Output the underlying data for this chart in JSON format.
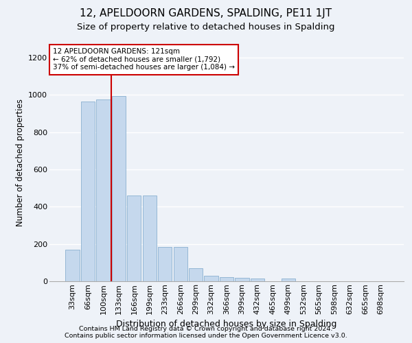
{
  "title": "12, APELDOORN GARDENS, SPALDING, PE11 1JT",
  "subtitle": "Size of property relative to detached houses in Spalding",
  "xlabel": "Distribution of detached houses by size in Spalding",
  "ylabel": "Number of detached properties",
  "footnote1": "Contains HM Land Registry data © Crown copyright and database right 2024.",
  "footnote2": "Contains public sector information licensed under the Open Government Licence v3.0.",
  "categories": [
    "33sqm",
    "66sqm",
    "100sqm",
    "133sqm",
    "166sqm",
    "199sqm",
    "233sqm",
    "266sqm",
    "299sqm",
    "332sqm",
    "366sqm",
    "399sqm",
    "432sqm",
    "465sqm",
    "499sqm",
    "532sqm",
    "565sqm",
    "598sqm",
    "632sqm",
    "665sqm",
    "698sqm"
  ],
  "values": [
    170,
    965,
    975,
    995,
    460,
    460,
    185,
    185,
    70,
    30,
    22,
    20,
    13,
    0,
    13,
    0,
    0,
    0,
    0,
    0,
    0
  ],
  "bar_color": "#c5d8ed",
  "bar_edge_color": "#8ab0d0",
  "vline_color": "#cc0000",
  "vline_index": 2.5,
  "annotation_text": "12 APELDOORN GARDENS: 121sqm\n← 62% of detached houses are smaller (1,792)\n37% of semi-detached houses are larger (1,084) →",
  "annotation_box_facecolor": "white",
  "annotation_box_edgecolor": "#cc0000",
  "ylim": [
    0,
    1270
  ],
  "yticks": [
    0,
    200,
    400,
    600,
    800,
    1000,
    1200
  ],
  "bg_color": "#eef2f8",
  "grid_color": "#ffffff",
  "title_fontsize": 11,
  "subtitle_fontsize": 9.5,
  "xlabel_fontsize": 9,
  "ylabel_fontsize": 8.5,
  "tick_fontsize": 8,
  "annotation_fontsize": 7.5,
  "footnote_fontsize": 6.8
}
